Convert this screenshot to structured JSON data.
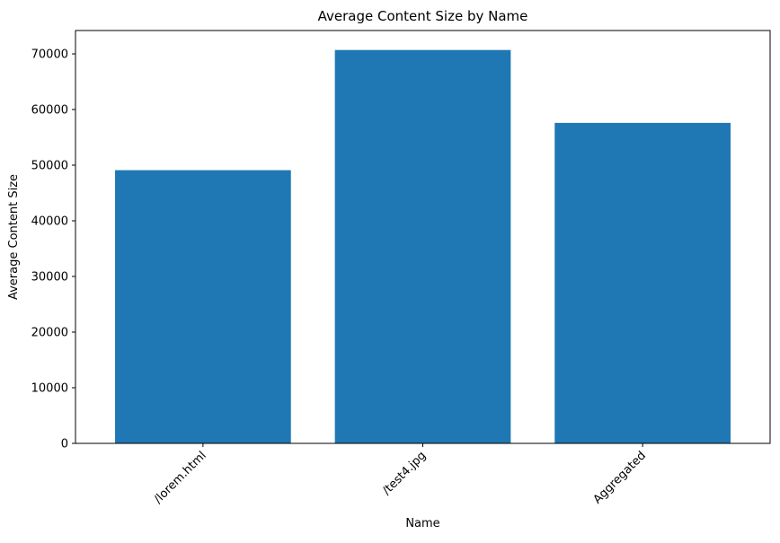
{
  "chart_data": {
    "type": "bar",
    "title": "Average Content Size by Name",
    "xlabel": "Name",
    "ylabel": "Average Content Size",
    "categories": [
      "/lorem.html",
      "/test4.jpg",
      "Aggregated"
    ],
    "values": [
      49100,
      70700,
      57600
    ],
    "ylim": [
      0,
      74200
    ],
    "yticks": [
      0,
      10000,
      20000,
      30000,
      40000,
      50000,
      60000,
      70000
    ],
    "ytick_labels": [
      "0",
      "10000",
      "20000",
      "30000",
      "40000",
      "50000",
      "60000",
      "70000"
    ],
    "xtick_rotation_deg": 45,
    "grid": false,
    "legend": "none",
    "colors": {
      "bar": "#1f77b4",
      "axis": "#000000",
      "background": "#ffffff"
    }
  }
}
